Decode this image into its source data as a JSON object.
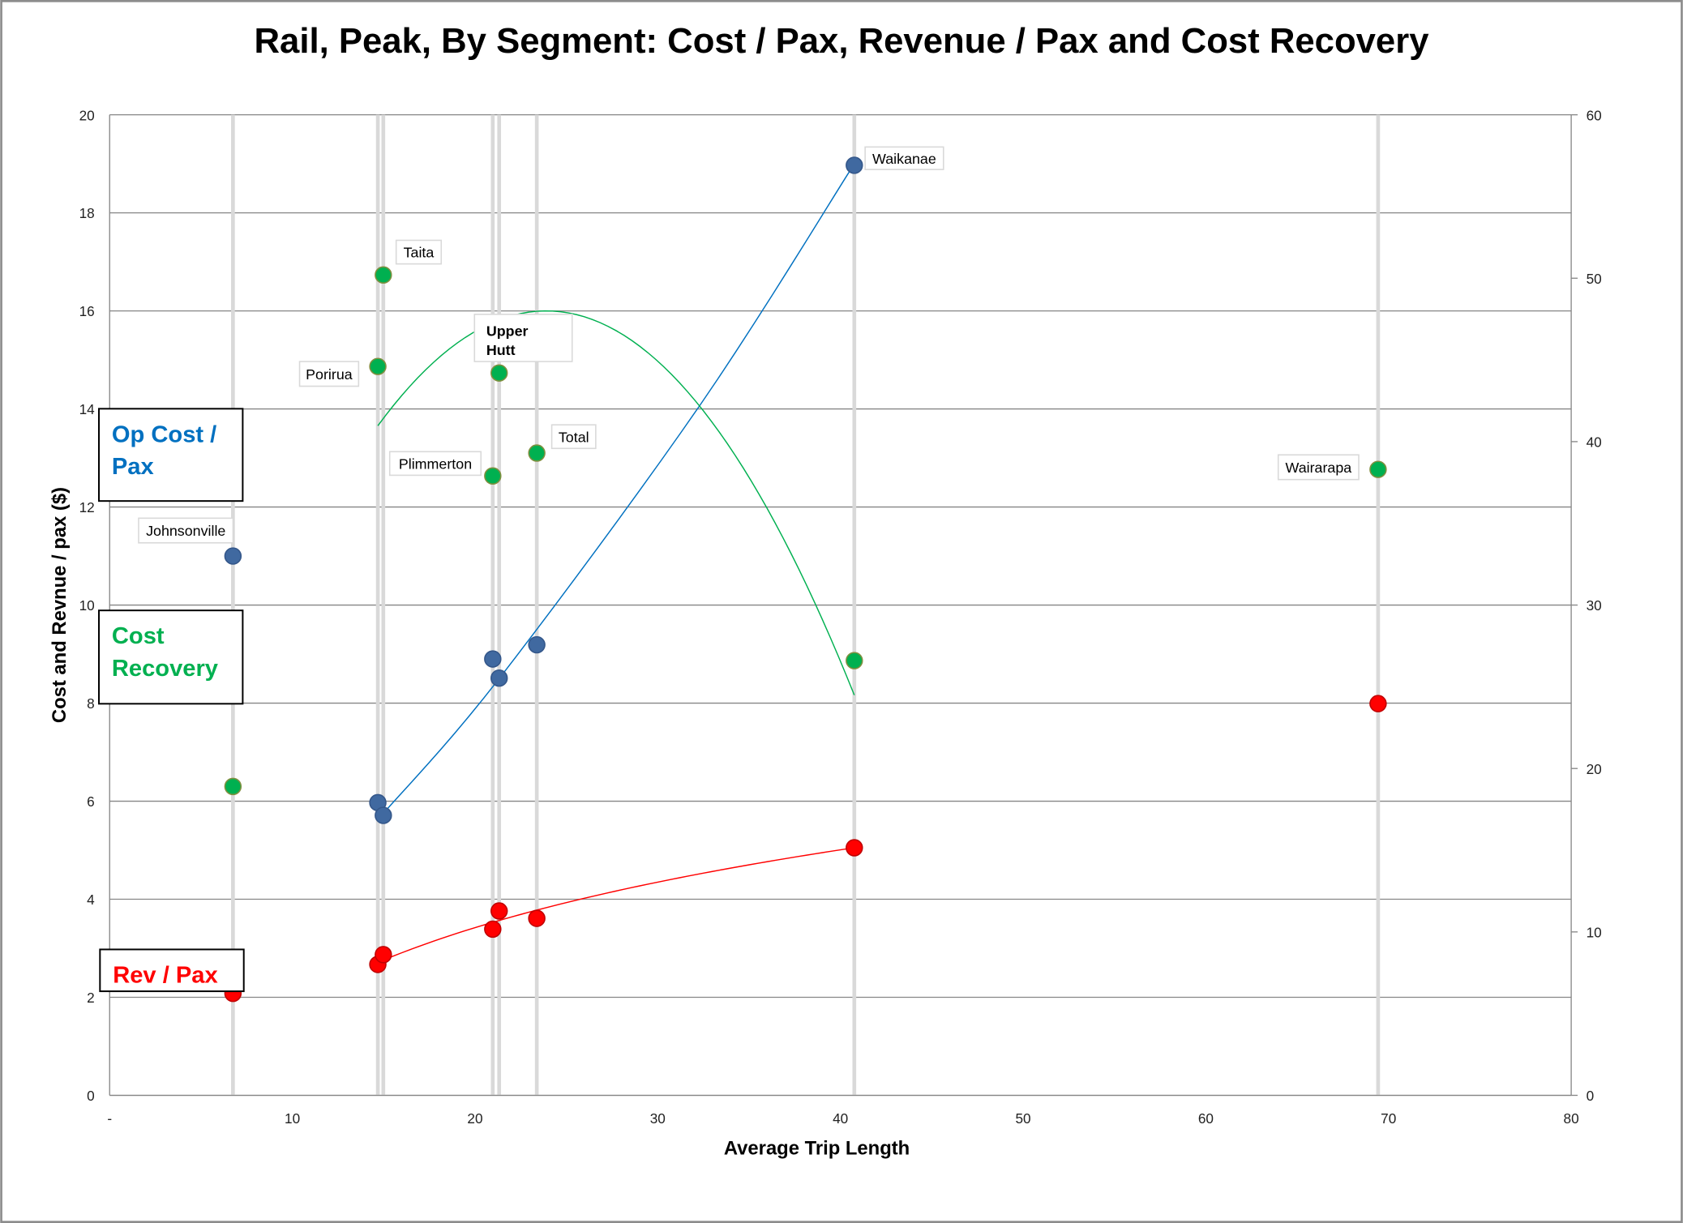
{
  "chart_data": {
    "type": "scatter",
    "title": "Rail, Peak, By Segment: Cost / Pax, Revenue / Pax and Cost Recovery",
    "xlabel": "Average Trip Length",
    "ylabel": "Cost and Revnue / pax ($)",
    "xlim": [
      0,
      80
    ],
    "ylim": [
      0,
      20
    ],
    "y2lim": [
      0,
      60
    ],
    "x_ticks": [
      "-",
      "10",
      "20",
      "30",
      "40",
      "50",
      "60",
      "70",
      "80"
    ],
    "y_ticks": [
      "0",
      "2",
      "4",
      "6",
      "8",
      "10",
      "12",
      "14",
      "16",
      "18",
      "20"
    ],
    "y2_ticks": [
      "0",
      "10",
      "20",
      "30",
      "40",
      "50",
      "60"
    ],
    "grid": true,
    "segments": [
      "Johnsonville",
      "Porirua",
      "Taita",
      "Plimmerton",
      "Upper Hutt",
      "Total",
      "Waikanae",
      "Wairarapa"
    ],
    "x": [
      6.75,
      14.68,
      14.98,
      20.97,
      21.32,
      23.38,
      40.76,
      69.43
    ],
    "series": [
      {
        "name": "Op Cost / Pax",
        "axis": "left",
        "color": "#4069a0",
        "values": [
          11.0,
          5.97,
          5.71,
          8.9,
          8.51,
          9.19,
          18.97,
          null
        ]
      },
      {
        "name": "Cost Recovery",
        "axis": "right",
        "color": "#00b050",
        "values": [
          18.9,
          44.6,
          50.2,
          37.9,
          44.2,
          39.3,
          26.6,
          38.3
        ]
      },
      {
        "name": "Rev / Pax",
        "axis": "left",
        "color": "#ff0000",
        "values": [
          2.08,
          2.67,
          2.87,
          3.39,
          3.76,
          3.61,
          5.05,
          7.99
        ]
      }
    ],
    "trendlines": [
      {
        "series": "Op Cost / Pax",
        "color": "#0070c0",
        "type": "poly",
        "points": [
          [
            14.98,
            5.75
          ],
          [
            21.32,
            8.5
          ],
          [
            32.3,
            14.07
          ],
          [
            40.76,
            19.0
          ]
        ]
      },
      {
        "series": "Cost Recovery",
        "color": "#00b050",
        "type": "poly2",
        "x_range": [
          14.68,
          40.76
        ],
        "vertex": [
          23.9,
          48.0
        ],
        "a": -0.0827
      },
      {
        "series": "Rev / Pax",
        "color": "#ff0000",
        "type": "log",
        "x_range": [
          14.68,
          40.76
        ],
        "intercept": -3.44,
        "slope": 2.29
      }
    ],
    "legend_boxes": [
      "Op Cost / Pax",
      "Cost Recovery",
      "Rev / Pax"
    ]
  }
}
